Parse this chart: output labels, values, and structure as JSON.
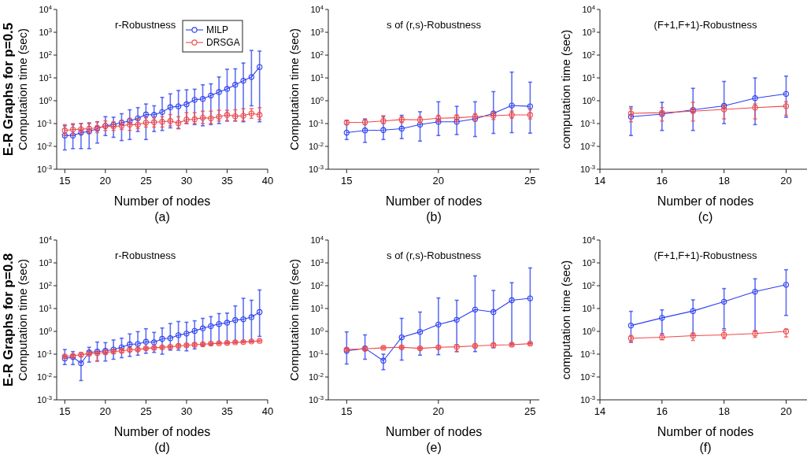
{
  "chart_data": [
    {
      "type": "line",
      "title": "r-Robustness",
      "xlabel": "Number of nodes",
      "ylabel": "Computation time (sec)",
      "annotations": [
        "(a)",
        "E-R Graphs for p=0.5"
      ],
      "log": "y",
      "marker": "circle",
      "legend": "top right",
      "xlim": [
        14,
        40
      ],
      "xticks": [
        15,
        20,
        25,
        30,
        35,
        40
      ],
      "ylim": [
        0.001,
        10000
      ],
      "yticks": [
        {
          "value": 0.001,
          "label": "10$^{-3}$"
        },
        {
          "value": 0.01,
          "label": "10$^{-2}$"
        },
        {
          "value": 0.1,
          "label": "10$^{-1}$"
        },
        {
          "value": 1,
          "label": "10$^{0}$"
        },
        {
          "value": 10,
          "label": "10$^{1}$"
        },
        {
          "value": 100,
          "label": "10$^{2}$"
        },
        {
          "value": 1000,
          "label": "10$^{3}$"
        },
        {
          "value": 10000,
          "label": "10$^{4}$"
        }
      ],
      "x": [
        15,
        16,
        17,
        18,
        19,
        20,
        21,
        22,
        23,
        24,
        25,
        26,
        27,
        28,
        29,
        30,
        31,
        32,
        33,
        34,
        35,
        36,
        37,
        38,
        39
      ],
      "series": [
        {
          "name": "MILP",
          "color": "#2b3ff2",
          "values": [
            0.03,
            0.03,
            0.04,
            0.045,
            0.06,
            0.08,
            0.09,
            0.11,
            0.13,
            0.17,
            0.25,
            0.24,
            0.32,
            0.52,
            0.57,
            0.7,
            1.1,
            1.2,
            1.7,
            2.4,
            3.3,
            5,
            7.5,
            11,
            30
          ],
          "errors": [
            [
              0.007,
              0.08
            ],
            [
              0.008,
              0.09
            ],
            [
              0.008,
              0.1
            ],
            [
              0.008,
              0.1
            ],
            [
              0.014,
              0.12
            ],
            [
              0.03,
              0.2
            ],
            [
              0.025,
              0.19
            ],
            [
              0.018,
              0.27
            ],
            [
              0.02,
              0.4
            ],
            [
              0.045,
              0.5
            ],
            [
              0.02,
              0.72
            ],
            [
              0.045,
              0.6
            ],
            [
              0.05,
              1.4
            ],
            [
              0.065,
              2
            ],
            [
              0.06,
              2.8
            ],
            [
              0.1,
              3
            ],
            [
              0.09,
              3.2
            ],
            [
              0.08,
              5
            ],
            [
              0.09,
              5.5
            ],
            [
              0.1,
              11
            ],
            [
              0.13,
              24
            ],
            [
              0.13,
              25
            ],
            [
              0.12,
              45
            ],
            [
              0.6,
              160
            ],
            [
              0.12,
              150
            ]
          ]
        },
        {
          "name": "DRSGA",
          "color": "#f04848",
          "values": [
            0.05,
            0.055,
            0.057,
            0.06,
            0.065,
            0.078,
            0.075,
            0.08,
            0.09,
            0.09,
            0.11,
            0.115,
            0.12,
            0.13,
            0.105,
            0.15,
            0.155,
            0.18,
            0.17,
            0.2,
            0.24,
            0.21,
            0.22,
            0.28,
            0.24
          ],
          "errors": [
            [
              0.03,
              0.09
            ],
            [
              0.03,
              0.1
            ],
            [
              0.035,
              0.1
            ],
            [
              0.04,
              0.11
            ],
            [
              0.04,
              0.12
            ],
            [
              0.05,
              0.13
            ],
            [
              0.05,
              0.12
            ],
            [
              0.055,
              0.14
            ],
            [
              0.05,
              0.17
            ],
            [
              0.06,
              0.16
            ],
            [
              0.07,
              0.18
            ],
            [
              0.07,
              0.18
            ],
            [
              0.07,
              0.2
            ],
            [
              0.08,
              0.25
            ],
            [
              0.06,
              0.2
            ],
            [
              0.1,
              0.3
            ],
            [
              0.1,
              0.3
            ],
            [
              0.1,
              0.35
            ],
            [
              0.1,
              0.35
            ],
            [
              0.13,
              0.38
            ],
            [
              0.13,
              0.38
            ],
            [
              0.13,
              0.4
            ],
            [
              0.13,
              0.45
            ],
            [
              0.17,
              0.45
            ],
            [
              0.15,
              0.5
            ]
          ]
        }
      ]
    },
    {
      "type": "line",
      "title": "s of (r,s)-Robustness",
      "xlabel": "Number of nodes",
      "ylabel": "Computation time (sec)",
      "annotations": [
        "(b)"
      ],
      "log": "y",
      "marker": "circle",
      "xlim": [
        14,
        25.5
      ],
      "xticks": [
        15,
        20,
        25
      ],
      "ylim": [
        0.001,
        10000
      ],
      "yticks": [
        {
          "value": 0.001,
          "label": "10$^{-3}$"
        },
        {
          "value": 0.01,
          "label": "10$^{-2}$"
        },
        {
          "value": 0.1,
          "label": "10$^{-1}$"
        },
        {
          "value": 1,
          "label": "10$^{0}$"
        },
        {
          "value": 10,
          "label": "10$^{1}$"
        },
        {
          "value": 100,
          "label": "10$^{2}$"
        },
        {
          "value": 1000,
          "label": "10$^{3}$"
        },
        {
          "value": 10000,
          "label": "10$^{4}$"
        }
      ],
      "x": [
        15,
        16,
        17,
        18,
        19,
        20,
        21,
        22,
        23,
        24,
        25
      ],
      "series": [
        {
          "color": "#2b3ff2",
          "values": [
            0.04,
            0.05,
            0.052,
            0.06,
            0.09,
            0.12,
            0.12,
            0.16,
            0.28,
            0.62,
            0.57
          ],
          "errors": [
            [
              0.02,
              0.14
            ],
            [
              0.015,
              0.16
            ],
            [
              0.02,
              0.2
            ],
            [
              0.022,
              0.23
            ],
            [
              0.017,
              0.33
            ],
            [
              0.03,
              0.9
            ],
            [
              0.033,
              0.57
            ],
            [
              0.027,
              0.9
            ],
            [
              0.037,
              2.5
            ],
            [
              0.04,
              18
            ],
            [
              0.038,
              6.5
            ]
          ]
        },
        {
          "color": "#f04848",
          "values": [
            0.11,
            0.115,
            0.13,
            0.15,
            0.145,
            0.17,
            0.18,
            0.2,
            0.22,
            0.24,
            0.24
          ],
          "errors": [
            [
              0.09,
              0.14
            ],
            [
              0.09,
              0.15
            ],
            [
              0.1,
              0.22
            ],
            [
              0.11,
              0.2
            ],
            [
              0.11,
              0.2
            ],
            [
              0.12,
              0.23
            ],
            [
              0.12,
              0.24
            ],
            [
              0.13,
              0.27
            ],
            [
              0.15,
              0.32
            ],
            [
              0.17,
              0.35
            ],
            [
              0.16,
              0.4
            ]
          ]
        }
      ]
    },
    {
      "type": "line",
      "title": "(F+1,F+1)-Robustness",
      "xlabel": "Number of nodes",
      "ylabel": "computation time (sec)",
      "annotations": [
        "(c)"
      ],
      "log": "y",
      "marker": "circle",
      "xlim": [
        14,
        20.8
      ],
      "xticks": [
        14,
        16,
        18,
        20
      ],
      "ylim": [
        0.001,
        10000
      ],
      "yticks": [
        {
          "value": 0.001,
          "label": "10$^{-3}$"
        },
        {
          "value": 0.01,
          "label": "10$^{-2}$"
        },
        {
          "value": 0.1,
          "label": "10$^{-1}$"
        },
        {
          "value": 1,
          "label": "10$^{0}$"
        },
        {
          "value": 10,
          "label": "10$^{1}$"
        },
        {
          "value": 100,
          "label": "10$^{2}$"
        },
        {
          "value": 1000,
          "label": "10$^{3}$"
        },
        {
          "value": 10000,
          "label": "10$^{4}$"
        }
      ],
      "x": [
        15,
        16,
        17,
        18,
        19,
        20
      ],
      "series": [
        {
          "color": "#2b3ff2",
          "values": [
            0.2,
            0.26,
            0.4,
            0.6,
            1.3,
            2
          ],
          "errors": [
            [
              0.03,
              0.55
            ],
            [
              0.05,
              0.85
            ],
            [
              0.05,
              3.5
            ],
            [
              0.1,
              7
            ],
            [
              0.09,
              10
            ],
            [
              0.19,
              12
            ]
          ]
        },
        {
          "color": "#f04848",
          "values": [
            0.28,
            0.3,
            0.35,
            0.42,
            0.5,
            0.58
          ],
          "errors": [
            [
              0.12,
              0.45
            ],
            [
              0.13,
              0.5
            ],
            [
              0.13,
              0.85
            ],
            [
              0.16,
              0.65
            ],
            [
              0.16,
              0.72
            ],
            [
              0.23,
              0.9
            ]
          ]
        }
      ]
    },
    {
      "type": "line",
      "title": "r-Robustness",
      "xlabel": "Number of nodes",
      "ylabel": "Computation time (sec)",
      "annotations": [
        "(d)",
        "E-R Graphs for p=0.8"
      ],
      "log": "y",
      "marker": "circle",
      "xlim": [
        14,
        40
      ],
      "xticks": [
        15,
        20,
        25,
        30,
        35,
        40
      ],
      "ylim": [
        0.001,
        10000
      ],
      "yticks": [
        {
          "value": 0.001,
          "label": "10$^{-3}$"
        },
        {
          "value": 0.01,
          "label": "10$^{-2}$"
        },
        {
          "value": 0.1,
          "label": "10$^{-1}$"
        },
        {
          "value": 1,
          "label": "10$^{0}$"
        },
        {
          "value": 10,
          "label": "10$^{1}$"
        },
        {
          "value": 100,
          "label": "10$^{2}$"
        },
        {
          "value": 1000,
          "label": "10$^{3}$"
        },
        {
          "value": 10000,
          "label": "10$^{4}$"
        }
      ],
      "x": [
        15,
        16,
        17,
        18,
        19,
        20,
        21,
        22,
        23,
        24,
        25,
        26,
        27,
        28,
        29,
        30,
        31,
        32,
        33,
        34,
        35,
        36,
        37,
        38,
        39
      ],
      "series": [
        {
          "color": "#2b3ff2",
          "values": [
            0.065,
            0.075,
            0.04,
            0.12,
            0.13,
            0.14,
            0.16,
            0.2,
            0.27,
            0.28,
            0.35,
            0.33,
            0.47,
            0.5,
            0.68,
            0.8,
            1.05,
            1.35,
            1.7,
            2.1,
            2.4,
            3.1,
            3.4,
            4.2,
            7
          ],
          "errors": [
            [
              0.035,
              0.16
            ],
            [
              0.035,
              0.13
            ],
            [
              0.007,
              0.1
            ],
            [
              0.045,
              0.2
            ],
            [
              0.05,
              0.34
            ],
            [
              0.05,
              0.32
            ],
            [
              0.06,
              0.42
            ],
            [
              0.07,
              0.5
            ],
            [
              0.08,
              0.77
            ],
            [
              0.09,
              0.97
            ],
            [
              0.11,
              1.3
            ],
            [
              0.12,
              0.9
            ],
            [
              0.1,
              1.4
            ],
            [
              0.15,
              2.2
            ],
            [
              0.15,
              2.7
            ],
            [
              0.14,
              2.5
            ],
            [
              0.17,
              2.9
            ],
            [
              0.23,
              3.7
            ],
            [
              0.25,
              4.4
            ],
            [
              0.3,
              6
            ],
            [
              0.3,
              6.3
            ],
            [
              0.32,
              13
            ],
            [
              0.35,
              28
            ],
            [
              0.35,
              23
            ],
            [
              0.6,
              65
            ]
          ]
        },
        {
          "color": "#f04848",
          "values": [
            0.08,
            0.085,
            0.095,
            0.105,
            0.11,
            0.12,
            0.13,
            0.14,
            0.155,
            0.16,
            0.18,
            0.19,
            0.2,
            0.21,
            0.23,
            0.245,
            0.26,
            0.27,
            0.29,
            0.3,
            0.31,
            0.33,
            0.34,
            0.36,
            0.38
          ],
          "errors": [
            [
              0.07,
              0.09
            ],
            [
              0.075,
              0.095
            ],
            [
              0.08,
              0.12
            ],
            [
              0.095,
              0.12
            ],
            [
              0.05,
              0.12
            ],
            [
              0.1,
              0.14
            ],
            [
              0.11,
              0.15
            ],
            [
              0.12,
              0.16
            ],
            [
              0.13,
              0.18
            ],
            [
              0.14,
              0.18
            ],
            [
              0.16,
              0.2
            ],
            [
              0.17,
              0.21
            ],
            [
              0.18,
              0.22
            ],
            [
              0.19,
              0.23
            ],
            [
              0.2,
              0.26
            ],
            [
              0.22,
              0.27
            ],
            [
              0.23,
              0.29
            ],
            [
              0.24,
              0.3
            ],
            [
              0.26,
              0.32
            ],
            [
              0.27,
              0.33
            ],
            [
              0.28,
              0.34
            ],
            [
              0.3,
              0.36
            ],
            [
              0.31,
              0.37
            ],
            [
              0.33,
              0.39
            ],
            [
              0.35,
              0.41
            ]
          ]
        }
      ]
    },
    {
      "type": "line",
      "title": "s of (r,s)-Robustness",
      "xlabel": "Number of nodes",
      "ylabel": "Computation time (sec)",
      "annotations": [
        "(e)"
      ],
      "log": "y",
      "marker": "circle",
      "xlim": [
        14,
        25.5
      ],
      "xticks": [
        15,
        20,
        25
      ],
      "ylim": [
        0.001,
        10000
      ],
      "yticks": [
        {
          "value": 0.001,
          "label": "10$^{-3}$"
        },
        {
          "value": 0.01,
          "label": "10$^{-2}$"
        },
        {
          "value": 0.1,
          "label": "10$^{-1}$"
        },
        {
          "value": 1,
          "label": "10$^{0}$"
        },
        {
          "value": 10,
          "label": "10$^{1}$"
        },
        {
          "value": 100,
          "label": "10$^{2}$"
        },
        {
          "value": 1000,
          "label": "10$^{3}$"
        },
        {
          "value": 10000,
          "label": "10$^{4}$"
        }
      ],
      "x": [
        15,
        16,
        17,
        18,
        19,
        20,
        21,
        22,
        23,
        24,
        25
      ],
      "series": [
        {
          "color": "#2b3ff2",
          "values": [
            0.14,
            0.18,
            0.052,
            0.55,
            0.95,
            2,
            3.2,
            9,
            7,
            23,
            28
          ],
          "errors": [
            [
              0.037,
              0.95
            ],
            [
              0.06,
              0.7
            ],
            [
              0.021,
              0.1
            ],
            [
              0.055,
              3.7
            ],
            [
              0.09,
              7
            ],
            [
              0.095,
              29
            ],
            [
              0.13,
              23
            ],
            [
              0.13,
              270
            ],
            [
              0.19,
              62
            ],
            [
              0.27,
              135
            ],
            [
              0.3,
              600
            ]
          ]
        },
        {
          "color": "#f04848",
          "values": [
            0.16,
            0.17,
            0.19,
            0.2,
            0.18,
            0.2,
            0.21,
            0.23,
            0.25,
            0.26,
            0.29
          ],
          "errors": [
            [
              0.14,
              0.18
            ],
            [
              0.15,
              0.2
            ],
            [
              0.17,
              0.21
            ],
            [
              0.18,
              0.22
            ],
            [
              0.16,
              0.2
            ],
            [
              0.18,
              0.23
            ],
            [
              0.13,
              0.26
            ],
            [
              0.2,
              0.27
            ],
            [
              0.2,
              0.29
            ],
            [
              0.23,
              0.3
            ],
            [
              0.26,
              0.32
            ]
          ]
        }
      ]
    },
    {
      "type": "line",
      "title": "(F+1,F+1)-Robustness",
      "xlabel": "Number of nodes",
      "ylabel": "computation time (sec)",
      "annotations": [
        "(f)"
      ],
      "log": "y",
      "marker": "circle",
      "xlim": [
        14,
        20.8
      ],
      "xticks": [
        14,
        16,
        18,
        20
      ],
      "ylim": [
        0.001,
        10000
      ],
      "yticks": [
        {
          "value": 0.001,
          "label": "10$^{-3}$"
        },
        {
          "value": 0.01,
          "label": "10$^{-2}$"
        },
        {
          "value": 0.1,
          "label": "10$^{-1}$"
        },
        {
          "value": 1,
          "label": "10$^{0}$"
        },
        {
          "value": 10,
          "label": "10$^{1}$"
        },
        {
          "value": 100,
          "label": "10$^{2}$"
        },
        {
          "value": 1000,
          "label": "10$^{3}$"
        },
        {
          "value": 10000,
          "label": "10$^{4}$"
        }
      ],
      "x": [
        15,
        16,
        17,
        18,
        19,
        20
      ],
      "series": [
        {
          "color": "#2b3ff2",
          "values": [
            1.8,
            3.9,
            7.8,
            20,
            55,
            110
          ],
          "errors": [
            [
              0.33,
              7.5
            ],
            [
              0.8,
              8.7
            ],
            [
              0.65,
              24
            ],
            [
              1.3,
              75
            ],
            [
              1,
              200
            ],
            [
              5,
              500
            ]
          ]
        },
        {
          "color": "#f04848",
          "values": [
            0.5,
            0.55,
            0.65,
            0.7,
            0.8,
            1
          ],
          "errors": [
            [
              0.35,
              0.65
            ],
            [
              0.43,
              0.7
            ],
            [
              0.4,
              0.85
            ],
            [
              0.48,
              1.1
            ],
            [
              0.55,
              1.1
            ],
            [
              0.57,
              1.25
            ]
          ]
        }
      ]
    }
  ]
}
